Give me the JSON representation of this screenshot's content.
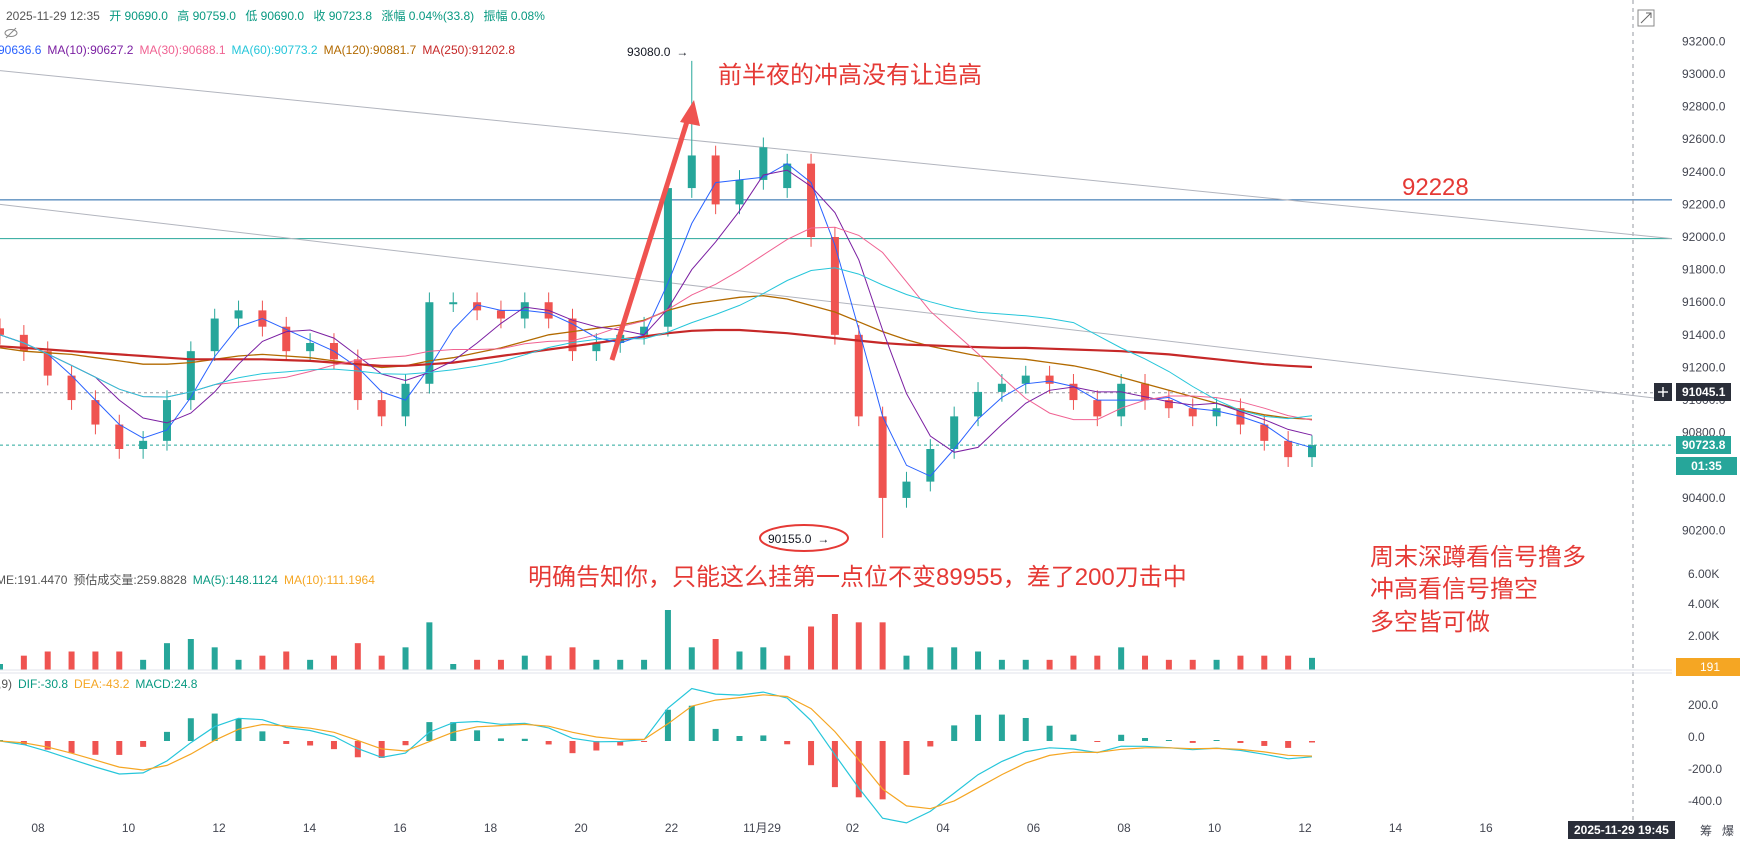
{
  "header": {
    "line1": {
      "datetime": "2025-11-29 12:35",
      "open": "开 90690.0",
      "high": "高 90759.0",
      "low": "低 90690.0",
      "close": "收 90723.8",
      "change": "涨幅 0.04%(33.8)",
      "amp": "振幅 0.08%"
    },
    "ma_line": [
      {
        "text": "90636.6",
        "color": "#2962ff"
      },
      {
        "text": "MA(10):90627.2",
        "color": "#7b1fa2"
      },
      {
        "text": "MA(30):90688.1",
        "color": "#f06292"
      },
      {
        "text": "MA(60):90773.2",
        "color": "#26c6da"
      },
      {
        "text": "MA(120):90881.7",
        "color": "#b26a00"
      },
      {
        "text": "MA(250):91202.8",
        "color": "#c62828"
      }
    ],
    "volume_line": [
      {
        "text": "ME:191.4470",
        "color": "#555555"
      },
      {
        "text": "预估成交量:259.8828",
        "color": "#555555"
      },
      {
        "text": "MA(5):148.1124",
        "color": "#089981"
      },
      {
        "text": "MA(10):111.1964",
        "color": "#f5a623"
      }
    ],
    "macd_line": [
      {
        "text": ",9)",
        "color": "#555555"
      },
      {
        "text": "DIF:-30.8",
        "color": "#089981"
      },
      {
        "text": "DEA:-43.2",
        "color": "#f5a623"
      },
      {
        "text": "MACD:24.8",
        "color": "#089981"
      }
    ]
  },
  "annotations": {
    "top": "前半夜的冲高没有让追高",
    "level": "92228",
    "middle": "明确告知你，只能这么挂第一点位不变89955，差了200刀击中",
    "right": [
      "周末深蹲看信号撸多",
      "冲高看信号撸空",
      "多空皆可做"
    ],
    "high_marker": "93080.0",
    "low_marker": "90155.0"
  },
  "price_tags": {
    "level_91045": "91045.1",
    "current": "90723.8",
    "countdown": "01:35",
    "volume": "191"
  },
  "crosshair_time": "2025-11-29 19:45",
  "corner_labels": [
    "筹",
    "爆"
  ],
  "colors": {
    "up": "#26a69a",
    "down": "#ef5350",
    "annotation": "#e53935",
    "hline_blue": "#1e63a8",
    "hline_teal": "#26a69a"
  },
  "chart_data": {
    "type": "line",
    "title": "",
    "price_axis": {
      "ticks": [
        93200,
        93000,
        92800,
        92600,
        92400,
        92200,
        92000,
        91800,
        91600,
        91400,
        91200,
        91000,
        90800,
        90600,
        90400,
        90200
      ],
      "tick_labels": [
        "93200.0",
        "93000.0",
        "92800.0",
        "92600.0",
        "92400.0",
        "92200.0",
        "92000.0",
        "91800.0",
        "91600.0",
        "91400.0",
        "91200.0",
        "91000.0",
        "90800.0",
        "90600.0",
        "90400.0",
        "90200.0"
      ],
      "ylim": [
        90050,
        93300
      ]
    },
    "time_axis": {
      "labels": [
        "08",
        "10",
        "12",
        "14",
        "16",
        "18",
        "20",
        "22",
        "11月29",
        "02",
        "04",
        "06",
        "08",
        "10",
        "12",
        "14",
        "16",
        "18"
      ]
    },
    "horizontal_levels": [
      92228,
      91990
    ],
    "series": [
      {
        "name": "Close",
        "values": [
          91400,
          91300,
          91150,
          91000,
          90850,
          90700,
          90750,
          91000,
          91300,
          91500,
          91550,
          91450,
          91300,
          91350,
          91250,
          91000,
          90900,
          91100,
          91600,
          91600,
          91550,
          91500,
          91600,
          91500,
          91300,
          91350,
          91400,
          91450,
          92300,
          92500,
          92200,
          92350,
          92550,
          92450,
          92000,
          91400,
          90900,
          90400,
          90500,
          90700,
          90900,
          91050,
          91100,
          91150,
          91100,
          91000,
          90900,
          91100,
          91000,
          90950,
          90900,
          90950,
          90850,
          90750,
          90650,
          90723.8
        ]
      },
      {
        "name": "MA(120)",
        "values": [
          91320,
          91300,
          91290,
          91280,
          91260,
          91240,
          91220,
          91220,
          91230,
          91250,
          91270,
          91280,
          91270,
          91260,
          91240,
          91220,
          91200,
          91210,
          91240,
          91260,
          91290,
          91320,
          91360,
          91400,
          91420,
          91440,
          91460,
          91490,
          91550,
          91590,
          91610,
          91630,
          91640,
          91620,
          91580,
          91540,
          91480,
          91420,
          91370,
          91330,
          91300,
          91270,
          91260,
          91250,
          91230,
          91210,
          91180,
          91140,
          91100,
          91060,
          91020,
          90980,
          90940,
          90910,
          90890,
          90881.7
        ]
      },
      {
        "name": "MA(250)",
        "values": [
          91330,
          91320,
          91310,
          91300,
          91290,
          91280,
          91270,
          91260,
          91250,
          91250,
          91250,
          91250,
          91245,
          91240,
          91230,
          91220,
          91210,
          91210,
          91220,
          91230,
          91250,
          91270,
          91290,
          91310,
          91330,
          91350,
          91370,
          91390,
          91410,
          91425,
          91430,
          91430,
          91420,
          91410,
          91395,
          91380,
          91365,
          91350,
          91340,
          91335,
          91330,
          91325,
          91320,
          91320,
          91315,
          91310,
          91305,
          91300,
          91290,
          91280,
          91265,
          91250,
          91235,
          91220,
          91210,
          91202.8
        ]
      }
    ],
    "extremes": {
      "high": 93080,
      "low": 90155
    },
    "volume_axis": {
      "tick_labels": [
        "6.00K",
        "4.00K",
        "2.00K"
      ]
    },
    "macd_axis": {
      "tick_labels": [
        "200.0",
        "0.0",
        "-200.0",
        "-400.0"
      ]
    }
  }
}
